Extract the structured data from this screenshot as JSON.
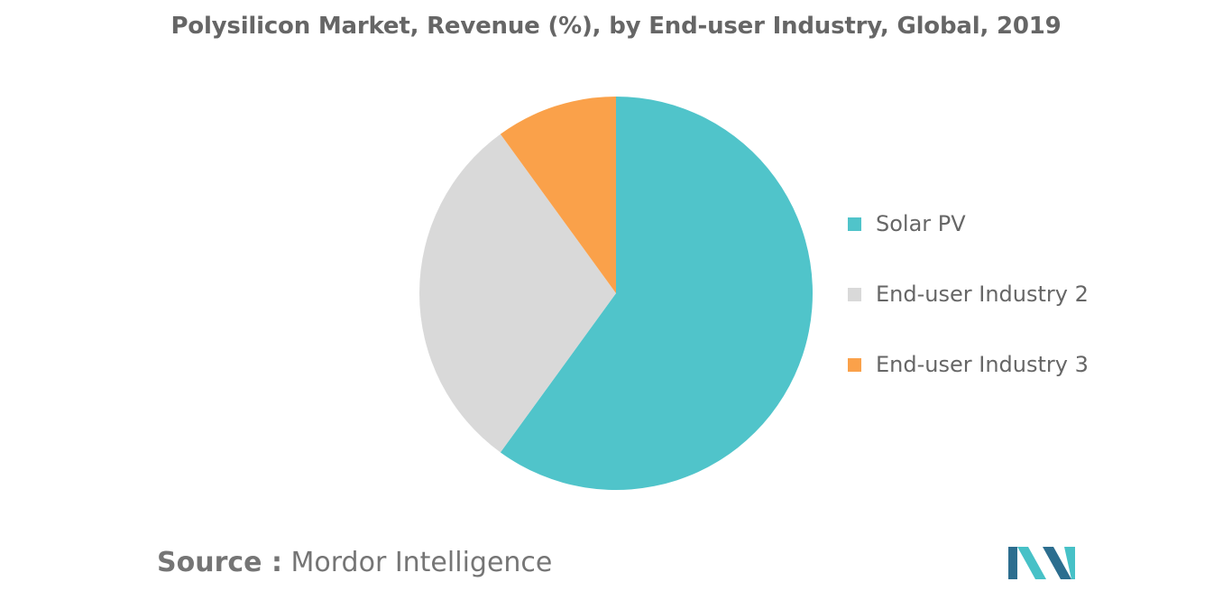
{
  "chart_data": {
    "type": "pie",
    "title": "Polysilicon Market, Revenue (%), by End-user Industry, Global, 2019",
    "categories": [
      "Solar PV",
      "End-user Industry 2",
      "End-user Industry 3"
    ],
    "values": [
      60,
      30,
      10
    ],
    "colors": [
      "#50C4CA",
      "#D9D9D9",
      "#FAA14A"
    ],
    "legend_position": "right",
    "data_labels": false
  },
  "source": {
    "label": "Source :",
    "name": "Mordor Intelligence"
  },
  "logo": {
    "icon": "mordor-intelligence-logo",
    "colors": [
      "#2C6E8F",
      "#47C1C7"
    ]
  }
}
